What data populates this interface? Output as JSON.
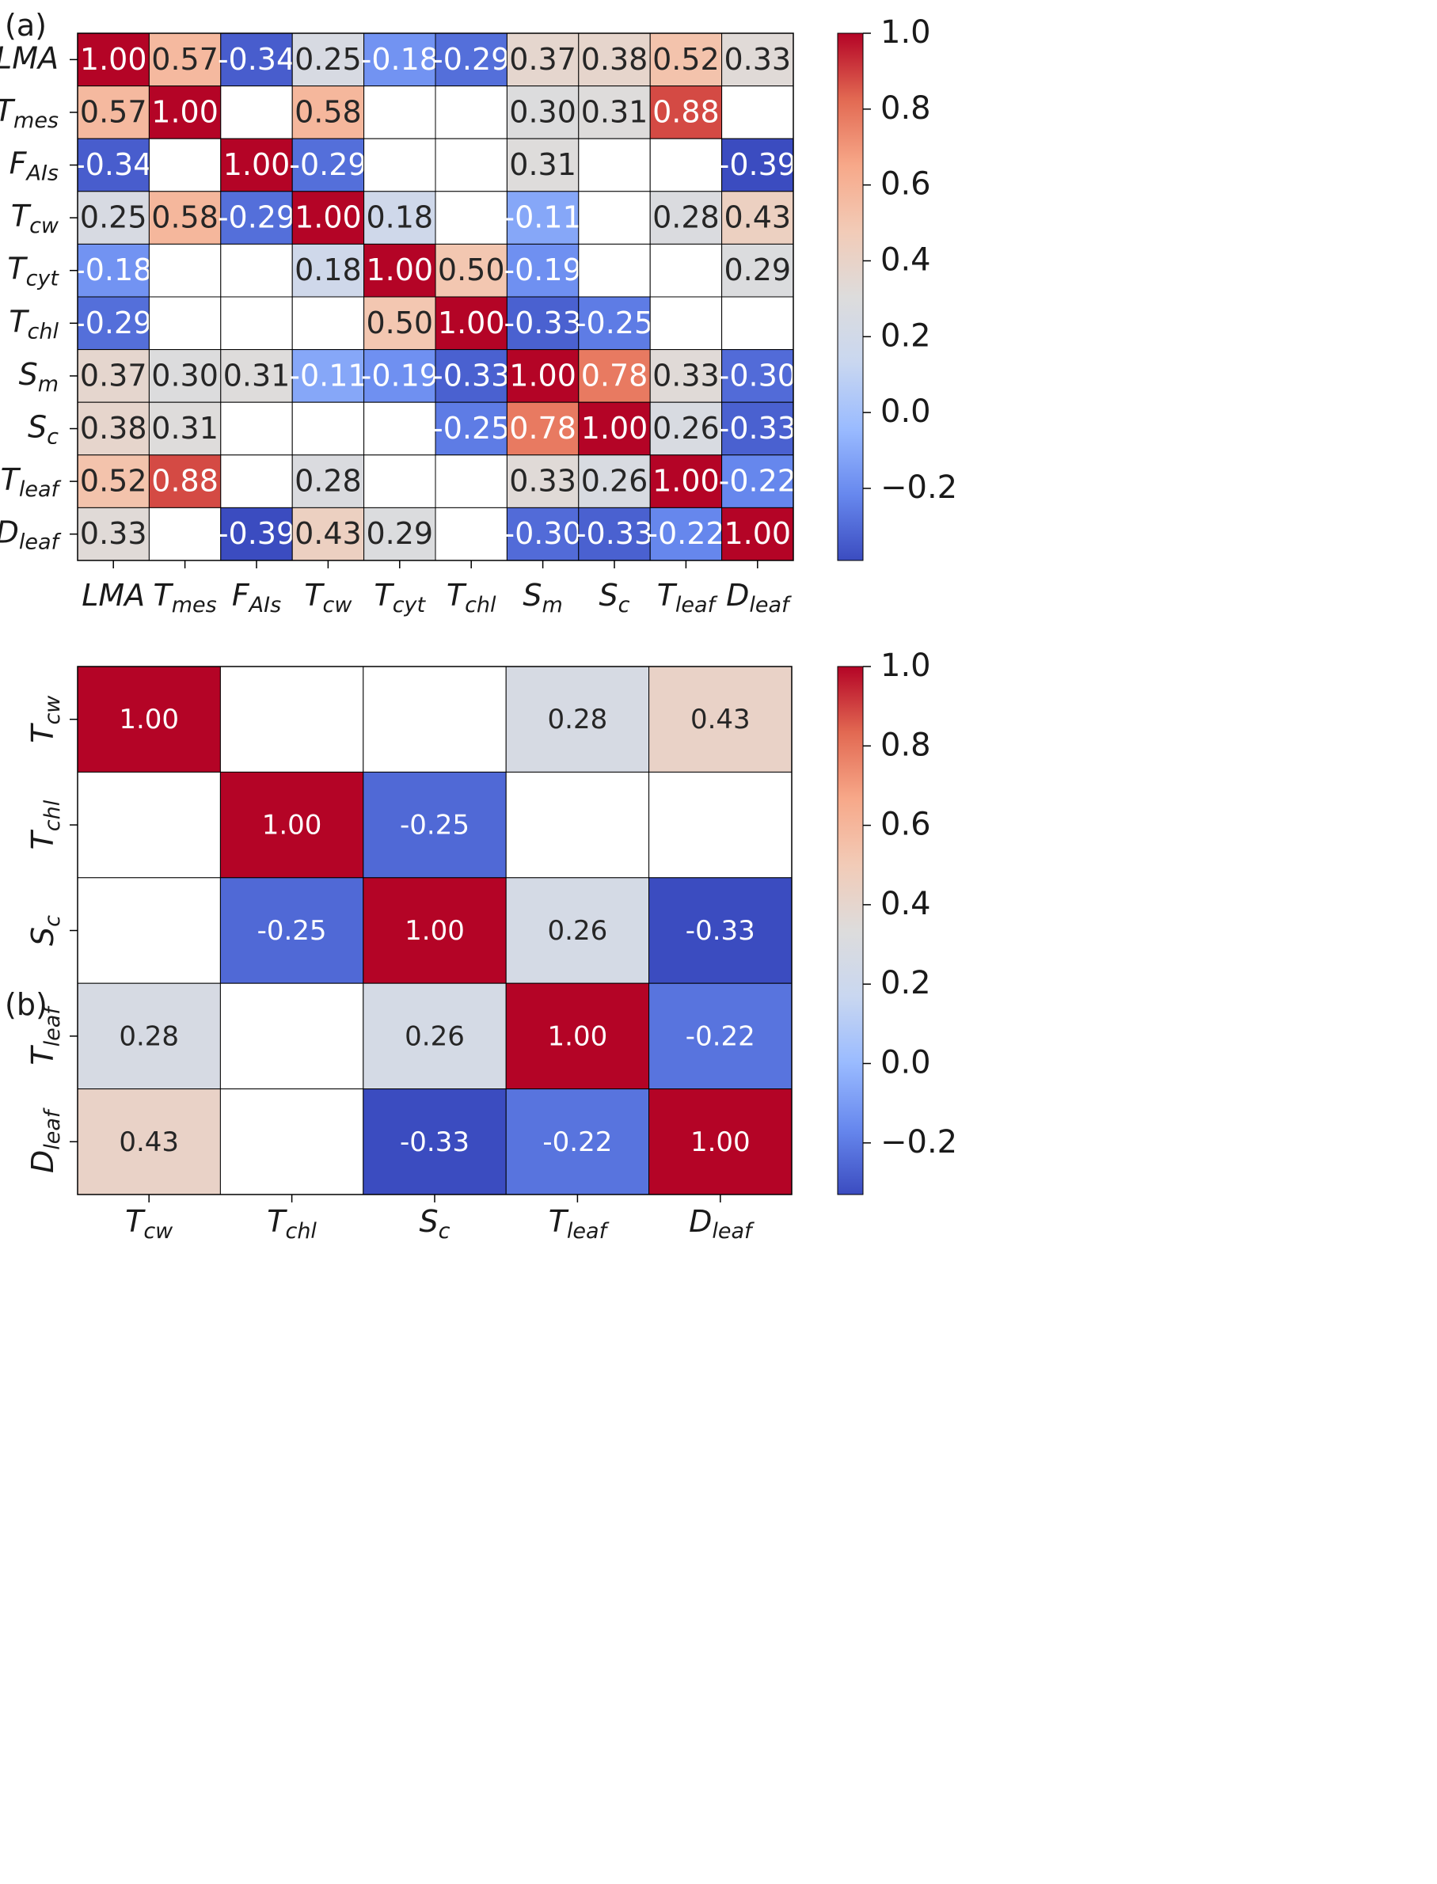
{
  "chart_data": [
    {
      "type": "heatmap",
      "panel_label": "(a)",
      "variables": [
        {
          "main": "LMA",
          "sub": ""
        },
        {
          "main": "T",
          "sub": "mes"
        },
        {
          "main": "F",
          "sub": "AIs"
        },
        {
          "main": "T",
          "sub": "cw"
        },
        {
          "main": "T",
          "sub": "cyt"
        },
        {
          "main": "T",
          "sub": "chl"
        },
        {
          "main": "S",
          "sub": "m"
        },
        {
          "main": "S",
          "sub": "c"
        },
        {
          "main": "T",
          "sub": "leaf"
        },
        {
          "main": "D",
          "sub": "leaf"
        }
      ],
      "matrix": [
        [
          1.0,
          0.57,
          -0.34,
          0.25,
          -0.18,
          -0.29,
          0.37,
          0.38,
          0.52,
          0.33
        ],
        [
          0.57,
          1.0,
          null,
          0.58,
          null,
          null,
          0.3,
          0.31,
          0.88,
          null
        ],
        [
          -0.34,
          null,
          1.0,
          -0.29,
          null,
          null,
          0.31,
          null,
          null,
          -0.39
        ],
        [
          0.25,
          0.58,
          -0.29,
          1.0,
          0.18,
          null,
          -0.11,
          null,
          0.28,
          0.43
        ],
        [
          -0.18,
          null,
          null,
          0.18,
          1.0,
          0.5,
          -0.19,
          null,
          null,
          0.29
        ],
        [
          -0.29,
          null,
          null,
          null,
          0.5,
          1.0,
          -0.33,
          -0.25,
          null,
          null
        ],
        [
          0.37,
          0.3,
          0.31,
          -0.11,
          -0.19,
          -0.33,
          1.0,
          0.78,
          0.33,
          -0.3
        ],
        [
          0.38,
          0.31,
          null,
          null,
          null,
          -0.25,
          0.78,
          1.0,
          0.26,
          -0.33
        ],
        [
          0.52,
          0.88,
          null,
          0.28,
          null,
          null,
          0.33,
          0.26,
          1.0,
          -0.22
        ],
        [
          0.33,
          null,
          -0.39,
          0.43,
          0.29,
          null,
          -0.3,
          -0.33,
          -0.22,
          1.0
        ]
      ],
      "colorbar": {
        "range": [
          -0.39,
          1.0
        ],
        "ticks": [
          "1.0",
          "0.8",
          "0.6",
          "0.4",
          "0.2",
          "0.0",
          "−0.2"
        ],
        "tick_values": [
          1.0,
          0.8,
          0.6,
          0.4,
          0.2,
          0.0,
          -0.2
        ]
      },
      "colormap": "coolwarm",
      "value_format": "2 decimals"
    },
    {
      "type": "heatmap",
      "panel_label": "(b)",
      "variables": [
        {
          "main": "T",
          "sub": "cw"
        },
        {
          "main": "T",
          "sub": "chl"
        },
        {
          "main": "S",
          "sub": "c"
        },
        {
          "main": "T",
          "sub": "leaf"
        },
        {
          "main": "D",
          "sub": "leaf"
        }
      ],
      "matrix": [
        [
          1.0,
          null,
          null,
          0.28,
          0.43
        ],
        [
          null,
          1.0,
          -0.25,
          null,
          null
        ],
        [
          null,
          -0.25,
          1.0,
          0.26,
          -0.33
        ],
        [
          0.28,
          null,
          0.26,
          1.0,
          -0.22
        ],
        [
          0.43,
          null,
          -0.33,
          -0.22,
          1.0
        ]
      ],
      "colorbar": {
        "range": [
          -0.33,
          1.0
        ],
        "ticks": [
          "1.0",
          "0.8",
          "0.6",
          "0.4",
          "0.2",
          "0.0",
          "−0.2"
        ],
        "tick_values": [
          1.0,
          0.8,
          0.6,
          0.4,
          0.2,
          0.0,
          -0.2
        ]
      },
      "colormap": "coolwarm",
      "value_format": "2 decimals"
    }
  ],
  "colors": {
    "cmap_stops": [
      "#3b4cc0",
      "#6788ee",
      "#9abbff",
      "#c9d7f0",
      "#dddcdc",
      "#f2cbb7",
      "#f7a889",
      "#e26952",
      "#b40426"
    ],
    "grid_line": "#000000",
    "empty_cell": "#ffffff",
    "dark_text": "#262626",
    "light_text": "#ffffff"
  }
}
